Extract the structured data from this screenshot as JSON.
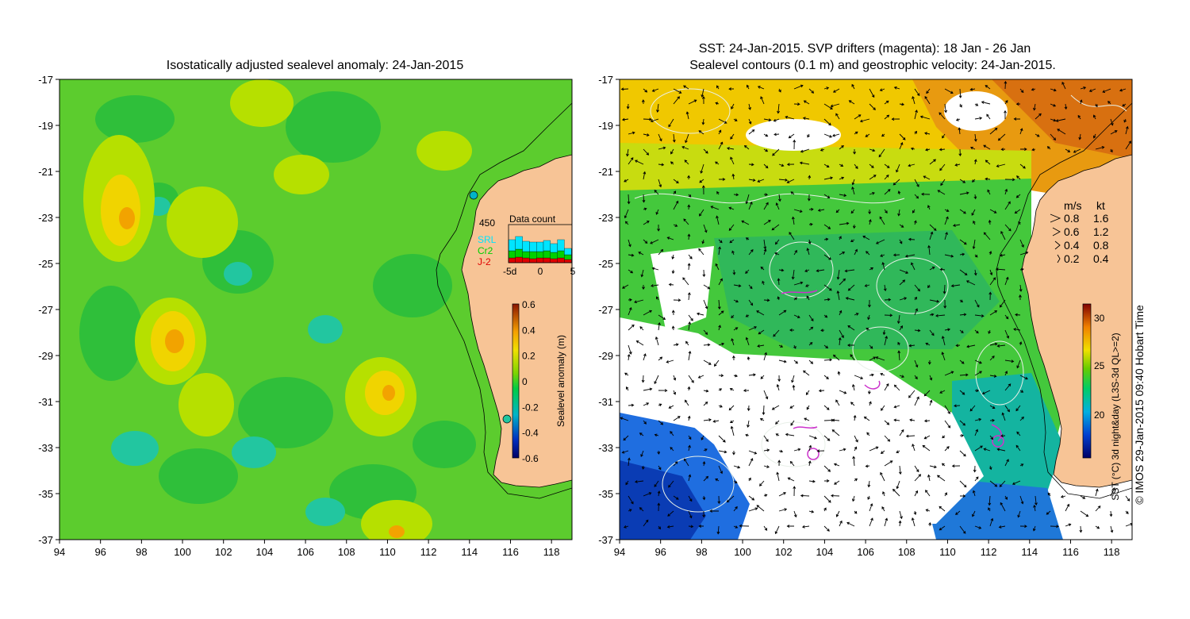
{
  "left_panel": {
    "title": "Isostatically adjusted sealevel anomaly: 24-Jan-2015",
    "x_ticks": [
      "94",
      "96",
      "98",
      "100",
      "102",
      "104",
      "106",
      "108",
      "110",
      "112",
      "114",
      "116",
      "118"
    ],
    "y_ticks": [
      "-17",
      "-19",
      "-21",
      "-23",
      "-25",
      "-27",
      "-29",
      "-31",
      "-33",
      "-35",
      "-37"
    ],
    "colorbar": {
      "label": "Sealevel anomaly (m)",
      "ticks": [
        "0.6",
        "0.4",
        "0.2",
        "0",
        "-0.2",
        "-0.4",
        "-0.6"
      ]
    },
    "data_count": {
      "title": "Data count",
      "max_label": "450",
      "x_labels": [
        "-5d",
        "0",
        "5"
      ],
      "legend": [
        "SRL",
        "Cr2",
        "J-2"
      ],
      "colors": {
        "SRL": "#00e5ff",
        "Cr2": "#00d000",
        "J-2": "#e00000"
      }
    }
  },
  "right_panel": {
    "title_line1": "SST: 24-Jan-2015. SVP drifters (magenta): 18 Jan - 26 Jan",
    "title_line2": "Sealevel contours (0.1 m) and geostrophic velocity: 24-Jan-2015.",
    "x_ticks": [
      "94",
      "96",
      "98",
      "100",
      "102",
      "104",
      "106",
      "108",
      "110",
      "112",
      "114",
      "116",
      "118"
    ],
    "y_ticks": [
      "-17",
      "-19",
      "-21",
      "-23",
      "-25",
      "-27",
      "-29",
      "-31",
      "-33",
      "-35",
      "-37"
    ],
    "velocity_legend": {
      "header_ms": "m/s",
      "header_kt": "kt",
      "rows": [
        {
          "ms": "0.8",
          "kt": "1.6"
        },
        {
          "ms": "0.6",
          "kt": "1.2"
        },
        {
          "ms": "0.4",
          "kt": "0.8"
        },
        {
          "ms": "0.2",
          "kt": "0.4"
        }
      ]
    },
    "colorbar": {
      "label": "SST (°C) 3d night&day (L3S-3d QL>=2)",
      "ticks": [
        "30",
        "25",
        "20"
      ]
    }
  },
  "credit": "© IMOS 29-Jan-2015 09:40 Hobart Time",
  "colors": {
    "land": "#f7c496",
    "ocean_green": "#33cc33",
    "cloud": "#ffffff",
    "drifter": "#cc33cc"
  }
}
